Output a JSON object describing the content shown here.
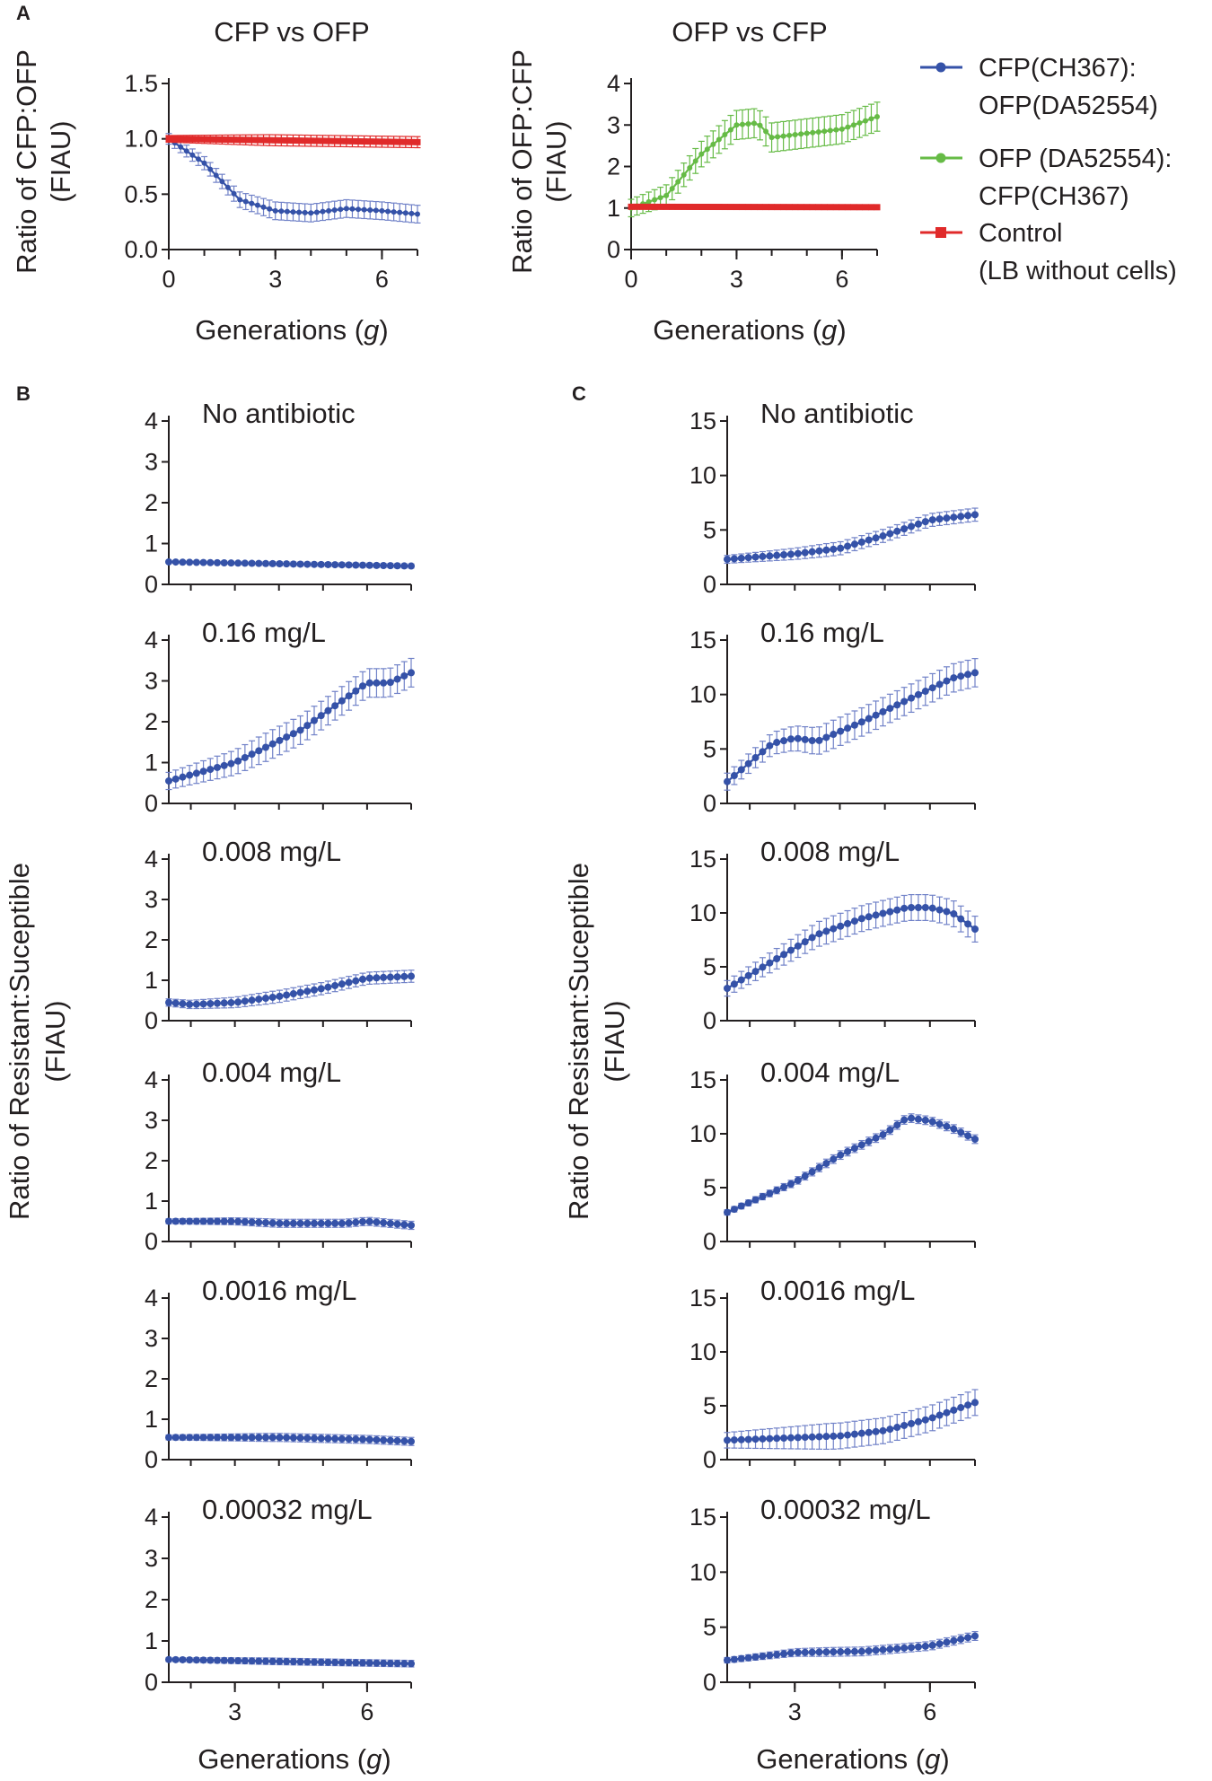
{
  "panel_letters": [
    "A",
    "B",
    "C"
  ],
  "colors": {
    "blue": "#3552a8",
    "green": "#66bb46",
    "red": "#e02a2a",
    "axis": "#231f20",
    "errbar": "#6f80c6"
  },
  "legend": {
    "items": [
      {
        "lines": [
          "CFP(CH367):",
          "OFP(DA52554)"
        ],
        "color": "#3552a8",
        "marker": "circle"
      },
      {
        "lines": [
          "OFP (DA52554):",
          "CFP(CH367)"
        ],
        "color": "#66bb46",
        "marker": "circle"
      },
      {
        "lines": [
          "Control",
          "(LB without cells)"
        ],
        "color": "#e02a2a",
        "marker": "square"
      }
    ]
  },
  "shared_labels": {
    "ylabel_BC": [
      "Ratio of Resistant:Suceptible",
      "(FIAU)"
    ],
    "xlabel": [
      "Generations (",
      "g",
      ")"
    ]
  },
  "chart_data": [
    {
      "id": "A1",
      "type": "line",
      "title": "CFP vs OFP",
      "ylabel": [
        "Ratio of CFP:OFP",
        "(FIAU)"
      ],
      "xlabel": "Generations (g)",
      "xlim": [
        0,
        7
      ],
      "ylim": [
        0,
        1.5
      ],
      "xticks": [
        0,
        3,
        6
      ],
      "yticks": [
        "0.0",
        "0.5",
        "1.0",
        "1.5"
      ],
      "series": [
        {
          "name": "CFP(CH367):OFP(DA52554)",
          "color": "#3552a8",
          "marker": "circle",
          "points": [
            [
              0,
              1.0
            ],
            [
              1,
              0.78
            ],
            [
              2,
              0.45
            ],
            [
              3,
              0.35
            ],
            [
              4,
              0.33
            ],
            [
              5,
              0.37
            ],
            [
              6,
              0.35
            ],
            [
              7,
              0.32
            ]
          ],
          "error": 0.08
        },
        {
          "name": "Control (LB without cells)",
          "color": "#e02a2a",
          "marker": "square",
          "points": [
            [
              0,
              1.0
            ],
            [
              7,
              0.97
            ]
          ],
          "error": 0.05
        }
      ]
    },
    {
      "id": "A2",
      "type": "line",
      "title": "OFP vs CFP",
      "ylabel": [
        "Ratio of OFP:CFP",
        "(FIAU)"
      ],
      "xlabel": "Generations (g)",
      "xlim": [
        0,
        7
      ],
      "ylim": [
        0,
        4
      ],
      "xticks": [
        0,
        3,
        6
      ],
      "yticks": [
        "0",
        "1",
        "2",
        "3",
        "4"
      ],
      "series": [
        {
          "name": "OFP (DA52554):CFP(CH367)",
          "color": "#66bb46",
          "marker": "circle",
          "points": [
            [
              0,
              1.0
            ],
            [
              1,
              1.3
            ],
            [
              2,
              2.3
            ],
            [
              3,
              3.0
            ],
            [
              3.6,
              3.05
            ],
            [
              4,
              2.7
            ],
            [
              5,
              2.8
            ],
            [
              6,
              2.9
            ],
            [
              7,
              3.2
            ]
          ],
          "error": 0.35
        },
        {
          "name": "Control (LB without cells)",
          "color": "#e02a2a",
          "marker": "square",
          "points": [
            [
              0,
              1.03
            ],
            [
              7,
              1.02
            ]
          ],
          "error": 0.05
        }
      ]
    },
    {
      "id": "B1",
      "type": "line",
      "title": "No antibiotic",
      "xlim": [
        1.5,
        7
      ],
      "ylim": [
        0,
        4
      ],
      "yticks": [
        "0",
        "1",
        "2",
        "3",
        "4"
      ],
      "series": [
        {
          "name": "Resistant:Susceptible",
          "color": "#3552a8",
          "marker": "circle",
          "points": [
            [
              1.5,
              0.55
            ],
            [
              7,
              0.45
            ]
          ],
          "error": 0.05
        }
      ]
    },
    {
      "id": "B2",
      "type": "line",
      "title": "0.16 mg/L",
      "xlim": [
        1.5,
        7
      ],
      "ylim": [
        0,
        4
      ],
      "yticks": [
        "0",
        "1",
        "2",
        "3",
        "4"
      ],
      "series": [
        {
          "name": "Resistant:Susceptible",
          "color": "#3552a8",
          "marker": "circle",
          "points": [
            [
              1.5,
              0.55
            ],
            [
              3,
              1.0
            ],
            [
              4.5,
              1.8
            ],
            [
              6,
              2.95
            ],
            [
              6.5,
              2.95
            ],
            [
              7,
              3.2
            ]
          ],
          "error": 0.35
        }
      ]
    },
    {
      "id": "B3",
      "type": "line",
      "title": "0.008 mg/L",
      "xlim": [
        1.5,
        7
      ],
      "ylim": [
        0,
        4
      ],
      "yticks": [
        "0",
        "1",
        "2",
        "3",
        "4"
      ],
      "series": [
        {
          "name": "Resistant:Susceptible",
          "color": "#3552a8",
          "marker": "circle",
          "points": [
            [
              1.5,
              0.45
            ],
            [
              2,
              0.4
            ],
            [
              3,
              0.45
            ],
            [
              4,
              0.6
            ],
            [
              5,
              0.8
            ],
            [
              6,
              1.05
            ],
            [
              7,
              1.1
            ]
          ],
          "error": 0.15
        }
      ]
    },
    {
      "id": "B4",
      "type": "line",
      "title": "0.004 mg/L",
      "xlim": [
        1.5,
        7
      ],
      "ylim": [
        0,
        4
      ],
      "yticks": [
        "0",
        "1",
        "2",
        "3",
        "4"
      ],
      "series": [
        {
          "name": "Resistant:Susceptible",
          "color": "#3552a8",
          "marker": "circle",
          "points": [
            [
              1.5,
              0.5
            ],
            [
              3,
              0.5
            ],
            [
              4,
              0.45
            ],
            [
              5.5,
              0.45
            ],
            [
              6,
              0.5
            ],
            [
              7,
              0.4
            ]
          ],
          "error": 0.1
        }
      ]
    },
    {
      "id": "B5",
      "type": "line",
      "title": "0.0016 mg/L",
      "xlim": [
        1.5,
        7
      ],
      "ylim": [
        0,
        4
      ],
      "yticks": [
        "0",
        "1",
        "2",
        "3",
        "4"
      ],
      "series": [
        {
          "name": "Resistant:Susceptible",
          "color": "#3552a8",
          "marker": "circle",
          "points": [
            [
              1.5,
              0.55
            ],
            [
              4,
              0.55
            ],
            [
              6,
              0.5
            ],
            [
              7,
              0.45
            ]
          ],
          "error": 0.1
        }
      ]
    },
    {
      "id": "B6",
      "type": "line",
      "title": "0.00032 mg/L",
      "xlim": [
        1.5,
        7
      ],
      "ylim": [
        0,
        4
      ],
      "yticks": [
        "0",
        "1",
        "2",
        "3",
        "4"
      ],
      "xticks": [
        3,
        6
      ],
      "series": [
        {
          "name": "Resistant:Susceptible",
          "color": "#3552a8",
          "marker": "circle",
          "points": [
            [
              1.5,
              0.55
            ],
            [
              7,
              0.45
            ]
          ],
          "error": 0.08
        }
      ]
    },
    {
      "id": "C1",
      "type": "line",
      "title": "No antibiotic",
      "xlim": [
        1.5,
        7
      ],
      "ylim": [
        0,
        15
      ],
      "yticks": [
        "0",
        "5",
        "10",
        "15"
      ],
      "series": [
        {
          "name": "Resistant:Susceptible",
          "color": "#3552a8",
          "marker": "circle",
          "points": [
            [
              1.5,
              2.3
            ],
            [
              3,
              2.8
            ],
            [
              4,
              3.3
            ],
            [
              5,
              4.5
            ],
            [
              6,
              5.9
            ],
            [
              7,
              6.4
            ]
          ],
          "error": 0.6
        }
      ]
    },
    {
      "id": "C2",
      "type": "line",
      "title": "0.16 mg/L",
      "xlim": [
        1.5,
        7
      ],
      "ylim": [
        0,
        15
      ],
      "yticks": [
        "0",
        "5",
        "10",
        "15"
      ],
      "series": [
        {
          "name": "Resistant:Susceptible",
          "color": "#3552a8",
          "marker": "circle",
          "points": [
            [
              1.5,
              2.0
            ],
            [
              2.5,
              5.5
            ],
            [
              3,
              6.0
            ],
            [
              3.5,
              5.7
            ],
            [
              4.5,
              7.5
            ],
            [
              5.5,
              9.5
            ],
            [
              6.5,
              11.5
            ],
            [
              7,
              12.0
            ]
          ],
          "error": 1.3
        }
      ]
    },
    {
      "id": "C3",
      "type": "line",
      "title": "0.008 mg/L",
      "xlim": [
        1.5,
        7
      ],
      "ylim": [
        0,
        15
      ],
      "yticks": [
        "0",
        "5",
        "10",
        "15"
      ],
      "series": [
        {
          "name": "Resistant:Susceptible",
          "color": "#3552a8",
          "marker": "circle",
          "points": [
            [
              1.5,
              3.0
            ],
            [
              2.5,
              5.5
            ],
            [
              3.5,
              8.0
            ],
            [
              4.5,
              9.5
            ],
            [
              5.5,
              10.5
            ],
            [
              6,
              10.5
            ],
            [
              6.5,
              10.0
            ],
            [
              7,
              8.5
            ]
          ],
          "error": 1.2
        }
      ]
    },
    {
      "id": "C4",
      "type": "line",
      "title": "0.004 mg/L",
      "xlim": [
        1.5,
        7
      ],
      "ylim": [
        0,
        15
      ],
      "yticks": [
        "0",
        "5",
        "10",
        "15"
      ],
      "series": [
        {
          "name": "Resistant:Susceptible",
          "color": "#3552a8",
          "marker": "circle",
          "points": [
            [
              1.5,
              2.7
            ],
            [
              3,
              5.5
            ],
            [
              4,
              8.0
            ],
            [
              5,
              10.0
            ],
            [
              5.5,
              11.5
            ],
            [
              6,
              11.2
            ],
            [
              6.5,
              10.5
            ],
            [
              7,
              9.5
            ]
          ],
          "error": 0.4
        }
      ]
    },
    {
      "id": "C5",
      "type": "line",
      "title": "0.0016 mg/L",
      "xlim": [
        1.5,
        7
      ],
      "ylim": [
        0,
        15
      ],
      "yticks": [
        "0",
        "5",
        "10",
        "15"
      ],
      "series": [
        {
          "name": "Resistant:Susceptible",
          "color": "#3552a8",
          "marker": "circle",
          "points": [
            [
              1.5,
              1.8
            ],
            [
              4,
              2.2
            ],
            [
              5,
              2.7
            ],
            [
              6,
              3.8
            ],
            [
              7,
              5.3
            ]
          ],
          "error": 1.2
        }
      ]
    },
    {
      "id": "C6",
      "type": "line",
      "title": "0.00032 mg/L",
      "xlim": [
        1.5,
        7
      ],
      "ylim": [
        0,
        15
      ],
      "yticks": [
        "0",
        "5",
        "10",
        "15"
      ],
      "xticks": [
        3,
        6
      ],
      "series": [
        {
          "name": "Resistant:Susceptible",
          "color": "#3552a8",
          "marker": "circle",
          "points": [
            [
              1.5,
              2.0
            ],
            [
              3,
              2.7
            ],
            [
              4.5,
              2.8
            ],
            [
              6,
              3.3
            ],
            [
              7,
              4.2
            ]
          ],
          "error": 0.4
        }
      ]
    }
  ]
}
